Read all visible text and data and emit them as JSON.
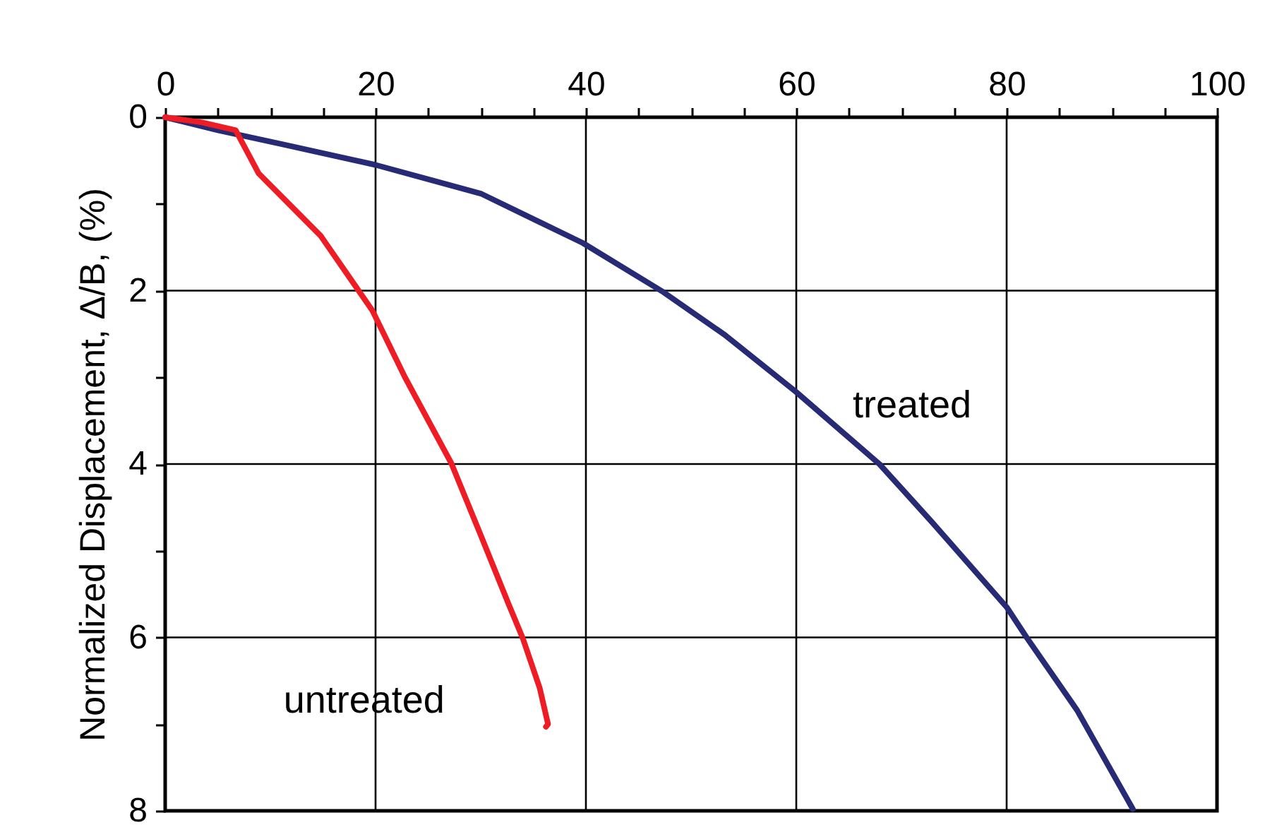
{
  "chart_data": {
    "type": "line",
    "ylabel": "Normalized Displacement, Δ/B, (%)",
    "xlim": [
      0,
      100
    ],
    "xticks": [
      0,
      {
        "value": 5,
        "label": null
      },
      {
        "value": 10,
        "label": null
      },
      {
        "value": 15,
        "label": null
      },
      20,
      {
        "value": 25,
        "label": null
      },
      {
        "value": 30,
        "label": null
      },
      {
        "value": 35,
        "label": null
      },
      40,
      {
        "value": 45,
        "label": null
      },
      {
        "value": 50,
        "label": null
      },
      {
        "value": 55,
        "label": null
      },
      60,
      {
        "value": 65,
        "label": null
      },
      {
        "value": 70,
        "label": null
      },
      {
        "value": 75,
        "label": null
      },
      80,
      {
        "value": 85,
        "label": null
      },
      {
        "value": 90,
        "label": null
      },
      {
        "value": 95,
        "label": null
      },
      100
    ],
    "ylim": [
      8,
      0
    ],
    "yticks": [
      0,
      {
        "value": 1,
        "label": null
      },
      2,
      {
        "value": 3,
        "label": null
      },
      4,
      {
        "value": 5,
        "label": null
      },
      6,
      {
        "value": 7,
        "label": null
      },
      8
    ],
    "grid": true,
    "line_style": "solid",
    "series": [
      {
        "name": "treated",
        "color": "#272a75",
        "x": [
          0,
          5,
          11.1,
          20,
          30,
          39.7,
          47.4,
          53.2,
          60,
          67.9,
          72.9,
          80,
          81.9,
          86.7,
          92
        ],
        "values": [
          0,
          0.15,
          0.31,
          0.55,
          0.88,
          1.45,
          2.02,
          2.51,
          3.17,
          4,
          4.67,
          5.65,
          6,
          6.84,
          7.98
        ]
      },
      {
        "name": "untreated",
        "color": "#ee1c24",
        "x": [
          0,
          3.5,
          6.7,
          8.9,
          14.8,
          19.7,
          22.8,
          27.2,
          29.9,
          32.6,
          34,
          35.6,
          36.4,
          36.2
        ],
        "values": [
          0,
          0.06,
          0.15,
          0.65,
          1.37,
          2.23,
          3,
          3.99,
          4.79,
          5.6,
          6.01,
          6.58,
          7,
          7.03
        ]
      }
    ]
  }
}
